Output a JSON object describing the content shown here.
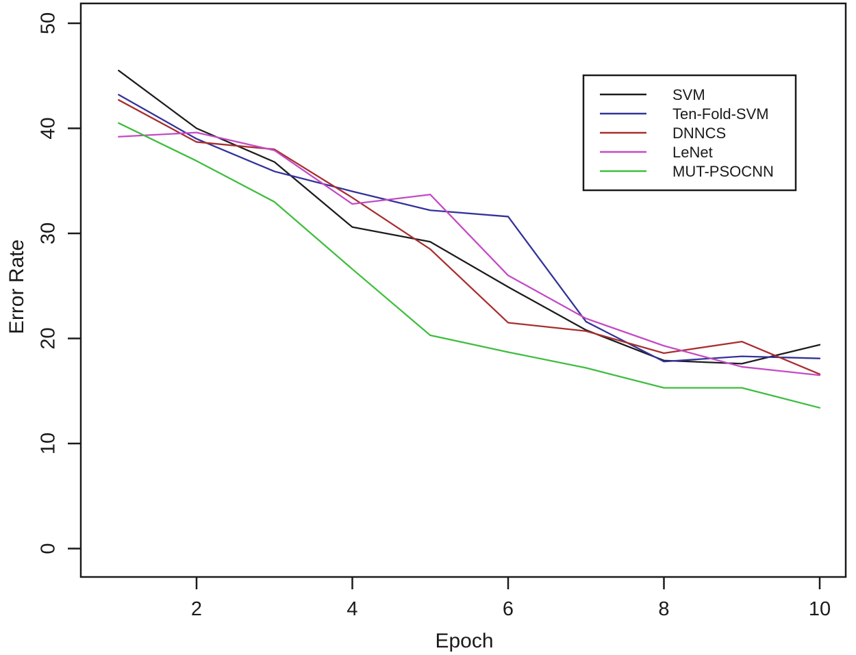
{
  "chart_data": {
    "type": "line",
    "title": "",
    "xlabel": "Epoch",
    "ylabel": "Error Rate",
    "x": [
      1,
      2,
      3,
      4,
      5,
      6,
      7,
      8,
      9,
      10
    ],
    "x_ticks": [
      2,
      4,
      6,
      8,
      10
    ],
    "y_ticks": [
      0,
      10,
      20,
      30,
      40,
      50
    ],
    "xlim": [
      0.5,
      10.35
    ],
    "ylim": [
      -2.5,
      52
    ],
    "grid": false,
    "legend_position": "upper-right-inside-box",
    "frame_color": "#1a1a1a",
    "background_color": "#ffffff",
    "series": [
      {
        "name": "SVM",
        "color": "#1c1c1c",
        "values": [
          45.5,
          40.0,
          36.8,
          30.6,
          29.2,
          24.9,
          20.8,
          17.9,
          17.6,
          19.4
        ]
      },
      {
        "name": "Ten-Fold-SVM",
        "color": "#32329b",
        "values": [
          43.2,
          39.0,
          35.9,
          34.0,
          32.2,
          31.6,
          21.6,
          17.8,
          18.3,
          18.1
        ]
      },
      {
        "name": "DNNCS",
        "color": "#a82e2e",
        "values": [
          42.7,
          38.7,
          38.0,
          33.4,
          28.5,
          21.5,
          20.7,
          18.6,
          19.7,
          16.6
        ]
      },
      {
        "name": "LeNet",
        "color": "#c44ac4",
        "values": [
          39.2,
          39.6,
          37.9,
          32.8,
          33.7,
          26.0,
          21.9,
          19.3,
          17.3,
          16.5
        ]
      },
      {
        "name": "MUT-PSOCNN",
        "color": "#3fbd3f",
        "values": [
          40.5,
          36.9,
          33.0,
          26.6,
          20.3,
          18.7,
          17.2,
          15.3,
          15.3,
          13.4
        ]
      }
    ]
  }
}
